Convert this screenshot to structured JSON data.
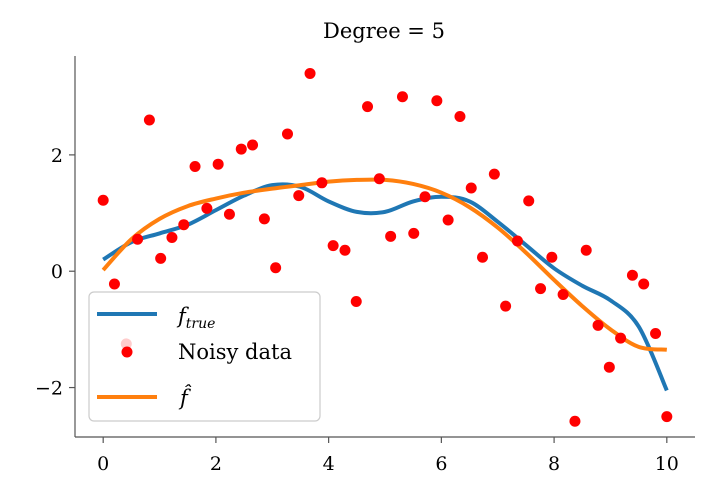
{
  "chart_data": {
    "type": "line",
    "title": "Degree = 5",
    "xlabel": "",
    "ylabel": "",
    "xlim": [
      -0.5,
      10.5
    ],
    "ylim": [
      -2.85,
      3.7
    ],
    "xticks": [
      0,
      2,
      4,
      6,
      8,
      10
    ],
    "xtick_labels": [
      "0",
      "2",
      "4",
      "6",
      "8",
      "10"
    ],
    "yticks": [
      -2,
      0,
      2
    ],
    "ytick_labels": [
      "−2",
      "0",
      "2"
    ],
    "grid": false,
    "legend_position": "lower-left",
    "colors": {
      "true": "#1f77b4",
      "fit": "#ff7f0e",
      "data": "#ff0000"
    },
    "series": [
      {
        "name": "f_true",
        "legend_main": "f",
        "legend_sub": "true",
        "kind": "line",
        "x": [
          0,
          0.5,
          1,
          1.5,
          2,
          2.5,
          3,
          3.5,
          4,
          4.5,
          5,
          5.5,
          6,
          6.5,
          7,
          7.5,
          8,
          8.5,
          9,
          9.5,
          10
        ],
        "y": [
          0.2,
          0.5,
          0.65,
          0.8,
          1.05,
          1.3,
          1.48,
          1.45,
          1.2,
          1.02,
          1.02,
          1.2,
          1.28,
          1.2,
          0.85,
          0.45,
          0.05,
          -0.25,
          -0.5,
          -0.95,
          -2.05
        ]
      },
      {
        "name": "Noisy data",
        "kind": "scatter",
        "x": [
          0,
          0.2,
          0.41,
          0.61,
          0.82,
          1.02,
          1.22,
          1.43,
          1.63,
          1.84,
          2.04,
          2.24,
          2.45,
          2.65,
          2.86,
          3.06,
          3.27,
          3.47,
          3.67,
          3.88,
          4.08,
          4.29,
          4.49,
          4.69,
          4.9,
          5.1,
          5.31,
          5.51,
          5.71,
          5.92,
          6.12,
          6.33,
          6.53,
          6.73,
          6.94,
          7.14,
          7.35,
          7.55,
          7.76,
          7.96,
          8.16,
          8.37,
          8.57,
          8.78,
          8.98,
          9.18,
          9.39,
          9.59,
          9.8,
          10
        ],
        "y": [
          1.22,
          -0.22,
          -1.25,
          0.55,
          2.6,
          0.22,
          0.58,
          0.8,
          1.8,
          1.08,
          1.84,
          0.98,
          2.1,
          2.17,
          0.9,
          0.06,
          2.36,
          1.3,
          3.4,
          1.52,
          0.44,
          0.36,
          -0.52,
          2.83,
          1.59,
          0.6,
          3.0,
          0.65,
          1.28,
          2.93,
          0.88,
          2.66,
          1.43,
          0.24,
          1.67,
          -0.6,
          0.52,
          1.21,
          -0.3,
          0.24,
          -0.4,
          -2.58,
          0.36,
          -0.93,
          -1.65,
          -1.15,
          -0.07,
          -0.22,
          -1.07,
          -2.5
        ]
      },
      {
        "name": "f_hat",
        "legend_main": "f̂",
        "kind": "line",
        "x": [
          0,
          0.5,
          1,
          1.5,
          2,
          2.5,
          3,
          3.5,
          4,
          4.5,
          5,
          5.5,
          6,
          6.5,
          7,
          7.5,
          8,
          8.5,
          9,
          9.5,
          10
        ],
        "y": [
          0.02,
          0.55,
          0.9,
          1.12,
          1.25,
          1.35,
          1.42,
          1.48,
          1.54,
          1.57,
          1.57,
          1.5,
          1.35,
          1.1,
          0.75,
          0.32,
          -0.15,
          -0.6,
          -1.0,
          -1.3,
          -1.35
        ]
      }
    ]
  }
}
